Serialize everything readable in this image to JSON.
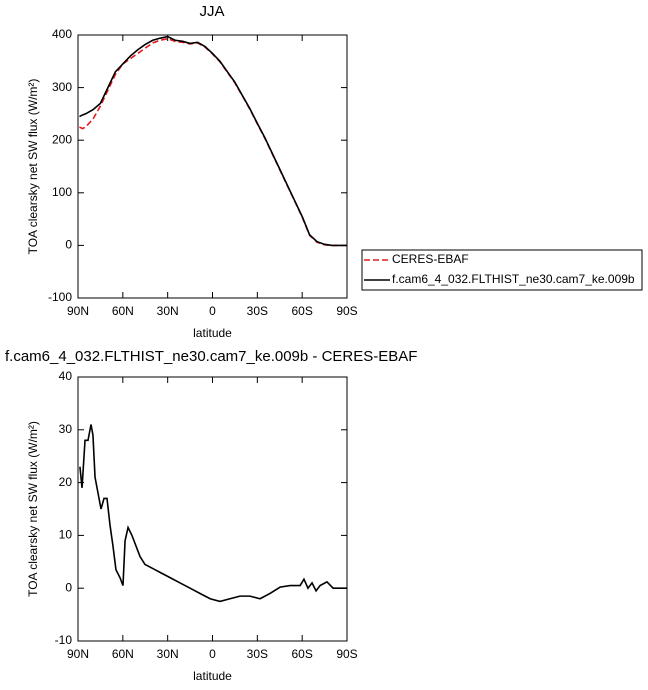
{
  "chart_data": [
    {
      "type": "line",
      "title": "JJA",
      "xlabel": "latitude",
      "ylabel": "TOA clearsky net SW flux (W/m²)",
      "xlim": [
        90,
        -90
      ],
      "ylim": [
        -100,
        400
      ],
      "xticks": [
        {
          "value": 90,
          "label": "90N"
        },
        {
          "value": 60,
          "label": "60N"
        },
        {
          "value": 30,
          "label": "30N"
        },
        0,
        {
          "value": -30,
          "label": "30S"
        },
        {
          "value": -60,
          "label": "60S"
        },
        {
          "value": -90,
          "label": "90S"
        }
      ],
      "yticks": [
        -100,
        0,
        100,
        200,
        300,
        400
      ],
      "legend": "right",
      "x": [
        89,
        87,
        85,
        80,
        75,
        70,
        65,
        60,
        55,
        50,
        45,
        40,
        35,
        30,
        25,
        20,
        15,
        10,
        5,
        0,
        -5,
        -10,
        -15,
        -20,
        -25,
        -30,
        -35,
        -40,
        -45,
        -50,
        -55,
        -60,
        -65,
        -70,
        -75,
        -80,
        -85,
        -90
      ],
      "series": [
        {
          "name": "CERES-EBAF",
          "color": "#e41a1c",
          "dash": true,
          "values": [
            225,
            222,
            225,
            240,
            265,
            295,
            325,
            345,
            355,
            365,
            375,
            385,
            390,
            393,
            388,
            386,
            383,
            385,
            377,
            364,
            349,
            329,
            309,
            284,
            259,
            231,
            204,
            174,
            144,
            114,
            84,
            54,
            19,
            6,
            1,
            0,
            0,
            0
          ]
        },
        {
          "name": "f.cam6_4_032.FLTHIST_ne30.cam7_ke.009b",
          "color": "#000000",
          "dash": false,
          "values": [
            245,
            248,
            250,
            258,
            270,
            300,
            330,
            345,
            360,
            372,
            382,
            390,
            394,
            397,
            390,
            388,
            384,
            386,
            378,
            365,
            350,
            330,
            310,
            285,
            260,
            232,
            205,
            175,
            145,
            115,
            85,
            55,
            20,
            7,
            2,
            0,
            0,
            0
          ]
        }
      ]
    },
    {
      "type": "line",
      "title": "f.cam6_4_032.FLTHIST_ne30.cam7_ke.009b - CERES-EBAF",
      "xlabel": "latitude",
      "ylabel": "TOA clearsky net SW flux (W/m²)",
      "xlim": [
        90,
        -90
      ],
      "ylim": [
        -10,
        40
      ],
      "xticks": [
        {
          "value": 90,
          "label": "90N"
        },
        {
          "value": 60,
          "label": "60N"
        },
        {
          "value": 30,
          "label": "30N"
        },
        0,
        {
          "value": -30,
          "label": "30S"
        },
        {
          "value": -60,
          "label": "60S"
        },
        {
          "value": -90,
          "label": "90S"
        }
      ],
      "yticks": [
        -10,
        0,
        10,
        20,
        30,
        40
      ],
      "x": [
        88.7,
        87.3,
        85.3,
        83.3,
        81.3,
        80,
        78.6,
        76.6,
        74.6,
        72.6,
        70.6,
        68.6,
        66.6,
        64.6,
        61.9,
        59.9,
        58.5,
        56.5,
        53.9,
        51.2,
        48.5,
        45.2,
        41.8,
        38.5,
        35.1,
        28.4,
        21.7,
        15,
        8.3,
        1.6,
        -5,
        -11.7,
        -18.4,
        -25,
        -31.8,
        -38.5,
        -45.2,
        -51.9,
        -58.6,
        -61.2,
        -63.9,
        -66.6,
        -69.3,
        -72,
        -76.6,
        -80.7,
        -90
      ],
      "series": [
        {
          "color": "#000000",
          "dash": false,
          "values": [
            23,
            19,
            28,
            28,
            31,
            29,
            21,
            18,
            15,
            17,
            17,
            12,
            8,
            3.5,
            2,
            0.5,
            9,
            11.5,
            10,
            8,
            6,
            4.5,
            4,
            3.5,
            3,
            2,
            1,
            0,
            -1,
            -2,
            -2.5,
            -2,
            -1.5,
            -1.5,
            -2,
            -1,
            0.2,
            0.5,
            0.5,
            1.7,
            0,
            1,
            -0.5,
            0.5,
            1.2,
            0,
            0
          ]
        }
      ]
    }
  ]
}
